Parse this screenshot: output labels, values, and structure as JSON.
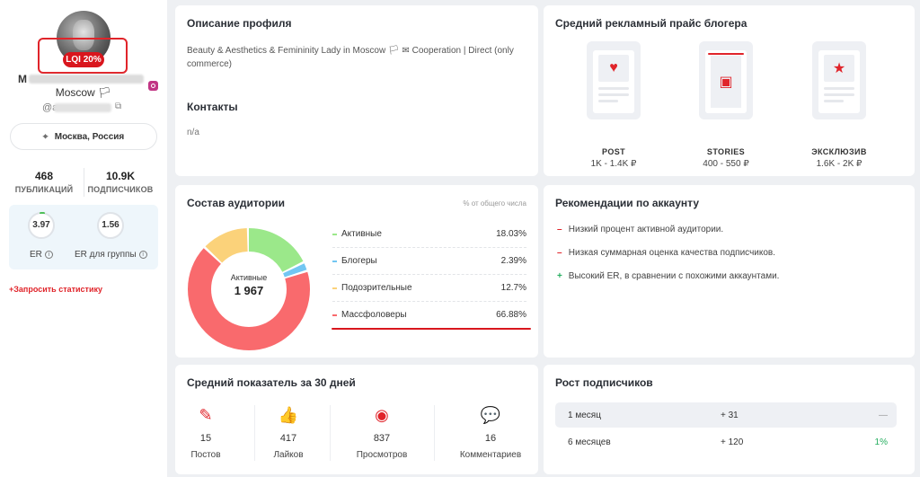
{
  "profile": {
    "lqi_badge": "LQI 20%",
    "name_visible": "M",
    "city": "Moscow 🏳",
    "handle_prefix": "@a",
    "location": "Москва, Россия",
    "stats": [
      {
        "value": "468",
        "label": "ПУБЛИКАЦИЙ"
      },
      {
        "value": "10.9K",
        "label": "ПОДПИСЧИКОВ"
      }
    ],
    "er": {
      "value": "3.97",
      "label": "ER"
    },
    "er_group": {
      "value": "1.56",
      "label": "ER для группы"
    },
    "request_link": "+Запросить статистику"
  },
  "description": {
    "title": "Описание профиля",
    "text": "Beauty & Aesthetics & Femininity Lady in Moscow 🏳 ✉ Cooperation | Direct (only commerce)",
    "contacts_title": "Контакты",
    "contacts_value": "n/a"
  },
  "price": {
    "title": "Средний рекламный прайс блогера",
    "items": [
      {
        "label": "POST",
        "value": "1K - 1.4K ₽",
        "icon": "heart-icon"
      },
      {
        "label": "STORIES",
        "value": "400 - 550 ₽",
        "icon": "image-icon"
      },
      {
        "label": "ЭКСКЛЮЗИВ",
        "value": "1.6K - 2K ₽",
        "icon": "star-icon"
      }
    ]
  },
  "audience": {
    "title": "Состав аудитории",
    "hint": "% от общего числа",
    "center_label": "Активные",
    "center_value": "1 967",
    "segments": [
      {
        "name": "Активные",
        "value": "18.03%",
        "pct": 18.03,
        "color": "#9be88a"
      },
      {
        "name": "Блогеры",
        "value": "2.39%",
        "pct": 2.39,
        "color": "#72c6f2"
      },
      {
        "name": "Подозрительные",
        "value": "12.7%",
        "pct": 12.7,
        "color": "#fbd27a"
      },
      {
        "name": "Массфоловеры",
        "value": "66.88%",
        "pct": 66.88,
        "color": "#f96a6d"
      }
    ]
  },
  "recommendations": {
    "title": "Рекомендации по аккаунту",
    "items": [
      {
        "mark": "–",
        "color": "#e0242a",
        "text": "Низкий процент активной аудитории."
      },
      {
        "mark": "–",
        "color": "#e0242a",
        "text": "Низкая суммарная оценка качества подписчиков."
      },
      {
        "mark": "+",
        "color": "#27ae60",
        "text": "Высокий ER, в сравнении с похожими аккаунтами."
      }
    ]
  },
  "average": {
    "title": "Средний показатель за 30 дней",
    "items": [
      {
        "value": "15",
        "label": "Постов",
        "icon": "edit-icon"
      },
      {
        "value": "417",
        "label": "Лайков",
        "icon": "thumbs-up-icon"
      },
      {
        "value": "837",
        "label": "Просмотров",
        "icon": "eye-icon"
      },
      {
        "value": "16",
        "label": "Комментариев",
        "icon": "comment-icon"
      }
    ]
  },
  "growth": {
    "title": "Рост подписчиков",
    "rows": [
      {
        "period": "1 месяц",
        "delta": "+ 31",
        "pct": "—",
        "pct_color": "#999999"
      },
      {
        "period": "6 месяцев",
        "delta": "+ 120",
        "pct": "1%",
        "pct_color": "#27ae60"
      }
    ]
  }
}
